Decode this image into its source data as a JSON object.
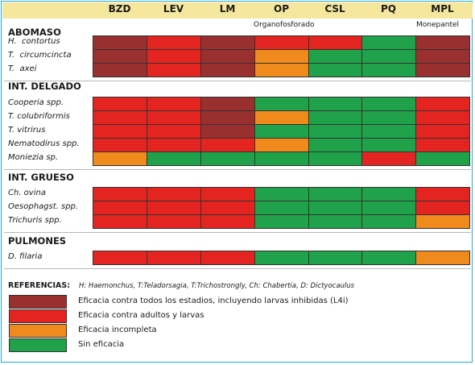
{
  "colors": {
    "dark": "#9a2f2f",
    "red": "#e32420",
    "orange": "#f08a1c",
    "green": "#1fa24a"
  },
  "columns": [
    "BZD",
    "LEV",
    "LM",
    "OP",
    "CSL",
    "PQ",
    "MPL"
  ],
  "notes": {
    "op": "Organofosforado",
    "mpl": "Monepantel"
  },
  "sections": [
    {
      "title": "ABOMASO",
      "rows": [
        {
          "label": "H.  contortus",
          "cells": [
            "dark",
            "red",
            "dark",
            "red",
            "red",
            "green",
            "dark"
          ]
        },
        {
          "label": "T.  circumcincta",
          "cells": [
            "dark",
            "red",
            "dark",
            "orange",
            "green",
            "green",
            "dark"
          ]
        },
        {
          "label": "T.  axei",
          "cells": [
            "dark",
            "red",
            "dark",
            "orange",
            "green",
            "green",
            "dark"
          ]
        }
      ]
    },
    {
      "title": "INT. DELGADO",
      "rows": [
        {
          "label": "Cooperia spp.",
          "cells": [
            "red",
            "red",
            "dark",
            "green",
            "green",
            "green",
            "red"
          ]
        },
        {
          "label": "T. colubriformis",
          "cells": [
            "red",
            "red",
            "dark",
            "orange",
            "green",
            "green",
            "red"
          ]
        },
        {
          "label": "T. vitrirus",
          "cells": [
            "red",
            "red",
            "dark",
            "green",
            "green",
            "green",
            "red"
          ]
        },
        {
          "label": "Nematodirus spp.",
          "cells": [
            "red",
            "red",
            "red",
            "orange",
            "green",
            "green",
            "red"
          ]
        },
        {
          "label": "Moniezia sp.",
          "cells": [
            "orange",
            "green",
            "green",
            "green",
            "green",
            "red",
            "green"
          ]
        }
      ]
    },
    {
      "title": "INT. GRUESO",
      "rows": [
        {
          "label": "Ch. ovina",
          "cells": [
            "red",
            "red",
            "red",
            "green",
            "green",
            "green",
            "red"
          ]
        },
        {
          "label": "Oesophagst. spp.",
          "cells": [
            "red",
            "red",
            "red",
            "green",
            "green",
            "green",
            "red"
          ]
        },
        {
          "label": "Trichuris spp.",
          "cells": [
            "red",
            "red",
            "red",
            "green",
            "green",
            "green",
            "orange"
          ]
        }
      ]
    },
    {
      "title": "PULMONES",
      "rows": [
        {
          "label": "D. filaria",
          "cells": [
            "red",
            "red",
            "red",
            "green",
            "green",
            "green",
            "orange"
          ]
        }
      ]
    }
  ],
  "references": {
    "title": "REFERENCIAS:",
    "subtitle": "H: Haemonchus, T:Teladorsagia, T:Trichostrongly, Ch: Chabertia, D: Dictyocaulus",
    "items": [
      {
        "color": "dark",
        "text": "Eficacia contra todos los estadios, incluyendo larvas inhibidas (L4i)"
      },
      {
        "color": "red",
        "text": "Eficacia contra adultos y larvas"
      },
      {
        "color": "orange",
        "text": "Eficacia incompleta"
      },
      {
        "color": "green",
        "text": "Sin eficacia"
      }
    ]
  }
}
